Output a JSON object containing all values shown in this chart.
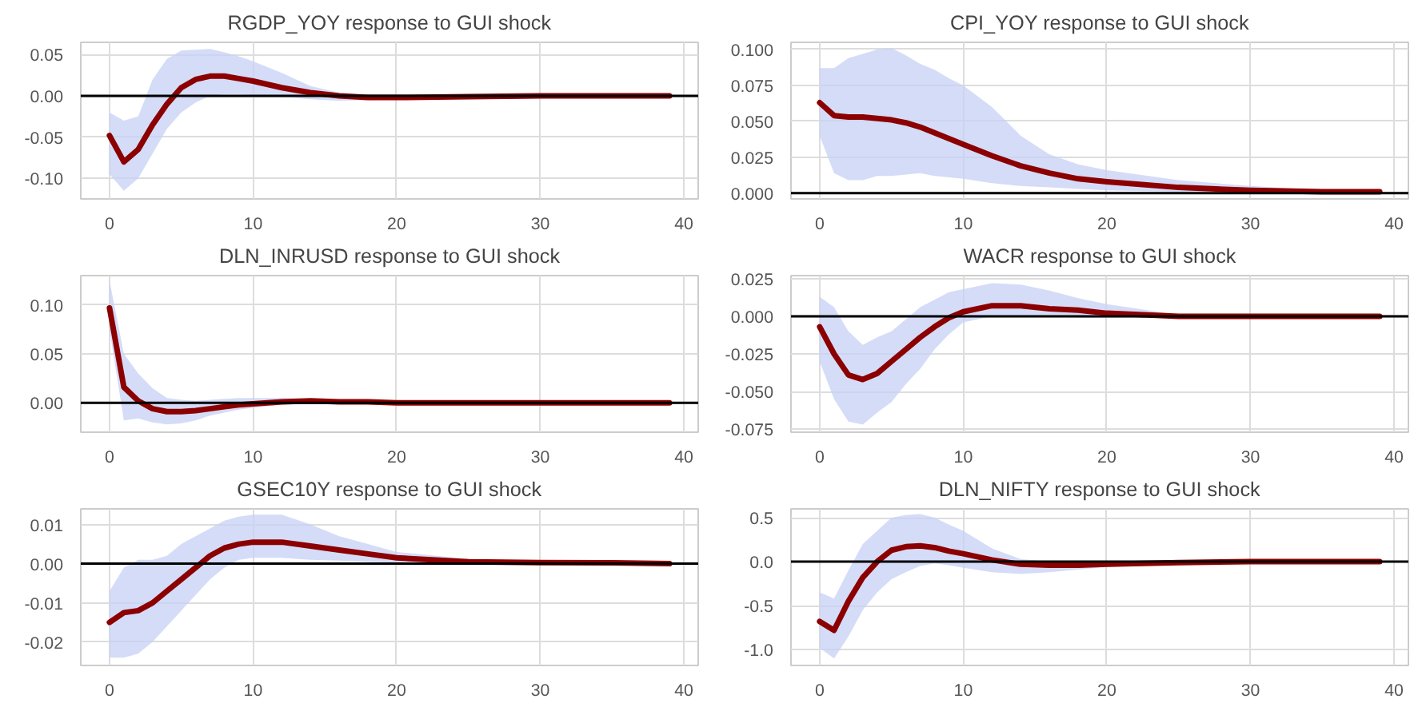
{
  "chart_data": [
    {
      "type": "line",
      "title": "RGDP_YOY response to GUI shock",
      "x": [
        0,
        1,
        2,
        3,
        4,
        5,
        6,
        7,
        8,
        9,
        10,
        12,
        14,
        16,
        18,
        20,
        25,
        30,
        35,
        39
      ],
      "xlim": [
        -2,
        41
      ],
      "xticks": [
        0,
        10,
        20,
        30,
        40
      ],
      "ylim": [
        -0.125,
        0.065
      ],
      "yticks": [
        {
          "value": -0.1,
          "label": "-0.10"
        },
        {
          "value": -0.05,
          "label": "-0.05"
        },
        {
          "value": 0,
          "label": "0.00"
        },
        {
          "value": 0.05,
          "label": "0.05"
        }
      ],
      "grid": true,
      "ref_lines": [
        {
          "axis": "y",
          "value": 0,
          "color": "#000000"
        }
      ],
      "series": [
        {
          "color": "#8b0000",
          "values": [
            -0.048,
            -0.08,
            -0.065,
            -0.035,
            -0.01,
            0.01,
            0.02,
            0.024,
            0.024,
            0.021,
            0.018,
            0.01,
            0.004,
            0.0,
            -0.002,
            -0.002,
            -0.001,
            0,
            0,
            0
          ],
          "upper": [
            -0.02,
            -0.03,
            -0.025,
            0.02,
            0.045,
            0.055,
            0.056,
            0.057,
            0.053,
            0.048,
            0.042,
            0.028,
            0.012,
            0.004,
            0.001,
            0,
            0.001,
            0.001,
            0.0005,
            0
          ],
          "lower": [
            -0.095,
            -0.115,
            -0.1,
            -0.07,
            -0.04,
            -0.02,
            -0.008,
            0,
            0.002,
            0.002,
            0.001,
            -0.001,
            -0.004,
            -0.006,
            -0.005,
            -0.004,
            -0.002,
            -0.001,
            -0.0005,
            0
          ]
        }
      ]
    },
    {
      "type": "line",
      "title": "CPI_YOY response to GUI shock",
      "x": [
        0,
        1,
        2,
        3,
        4,
        5,
        6,
        7,
        8,
        9,
        10,
        12,
        14,
        16,
        18,
        20,
        25,
        30,
        35,
        39
      ],
      "xlim": [
        -2,
        41
      ],
      "xticks": [
        0,
        10,
        20,
        30,
        40
      ],
      "ylim": [
        -0.004,
        0.105
      ],
      "yticks": [
        {
          "value": 0,
          "label": "0.000"
        },
        {
          "value": 0.025,
          "label": "0.025"
        },
        {
          "value": 0.05,
          "label": "0.050"
        },
        {
          "value": 0.075,
          "label": "0.075"
        },
        {
          "value": 0.1,
          "label": "0.100"
        }
      ],
      "grid": true,
      "ref_lines": [
        {
          "axis": "y",
          "value": 0,
          "color": "#000000"
        }
      ],
      "series": [
        {
          "color": "#8b0000",
          "values": [
            0.063,
            0.054,
            0.053,
            0.053,
            0.052,
            0.051,
            0.049,
            0.046,
            0.042,
            0.038,
            0.034,
            0.026,
            0.019,
            0.014,
            0.01,
            0.008,
            0.004,
            0.002,
            0.001,
            0.001
          ],
          "upper": [
            0.087,
            0.087,
            0.094,
            0.097,
            0.1,
            0.101,
            0.096,
            0.09,
            0.086,
            0.08,
            0.075,
            0.06,
            0.04,
            0.027,
            0.02,
            0.016,
            0.009,
            0.005,
            0.002,
            0.001
          ],
          "lower": [
            0.04,
            0.014,
            0.009,
            0.009,
            0.012,
            0.012,
            0.013,
            0.014,
            0.012,
            0.011,
            0.01,
            0.007,
            0.005,
            0.004,
            0.003,
            0.002,
            0.001,
            0.0005,
            0,
            0
          ]
        }
      ]
    },
    {
      "type": "line",
      "title": "DLN_INRUSD response to GUI shock",
      "x": [
        0,
        1,
        2,
        3,
        4,
        5,
        6,
        7,
        8,
        9,
        10,
        12,
        14,
        16,
        18,
        20,
        25,
        30,
        35,
        39
      ],
      "xlim": [
        -2,
        41
      ],
      "xticks": [
        0,
        10,
        20,
        30,
        40
      ],
      "ylim": [
        -0.03,
        0.13
      ],
      "yticks": [
        {
          "value": 0,
          "label": "0.00"
        },
        {
          "value": 0.05,
          "label": "0.05"
        },
        {
          "value": 0.1,
          "label": "0.10"
        }
      ],
      "grid": true,
      "ref_lines": [
        {
          "axis": "y",
          "value": 0,
          "color": "#000000"
        }
      ],
      "series": [
        {
          "color": "#8b0000",
          "values": [
            0.097,
            0.016,
            0.002,
            -0.006,
            -0.009,
            -0.009,
            -0.008,
            -0.006,
            -0.004,
            -0.002,
            -0.001,
            0.001,
            0.002,
            0.001,
            0.001,
            0,
            0,
            0,
            0,
            0
          ],
          "upper": [
            0.125,
            0.05,
            0.03,
            0.015,
            0.005,
            0.003,
            0.002,
            0.003,
            0.004,
            0.005,
            0.005,
            0.005,
            0.004,
            0.003,
            0.002,
            0.001,
            0.001,
            0,
            0,
            0
          ],
          "lower": [
            0.075,
            -0.018,
            -0.016,
            -0.02,
            -0.022,
            -0.021,
            -0.018,
            -0.013,
            -0.01,
            -0.007,
            -0.005,
            -0.002,
            -0.001,
            -0.001,
            -0.001,
            -0.001,
            0,
            0,
            0,
            0
          ]
        }
      ]
    },
    {
      "type": "line",
      "title": "WACR response to GUI shock",
      "x": [
        0,
        1,
        2,
        3,
        4,
        5,
        6,
        7,
        8,
        9,
        10,
        12,
        14,
        16,
        18,
        20,
        25,
        30,
        35,
        39
      ],
      "xlim": [
        -2,
        41
      ],
      "xticks": [
        0,
        10,
        20,
        30,
        40
      ],
      "ylim": [
        -0.077,
        0.027
      ],
      "yticks": [
        {
          "value": -0.075,
          "label": "-0.075"
        },
        {
          "value": -0.05,
          "label": "-0.050"
        },
        {
          "value": -0.025,
          "label": "-0.025"
        },
        {
          "value": 0,
          "label": "0.000"
        },
        {
          "value": 0.025,
          "label": "0.025"
        }
      ],
      "grid": true,
      "ref_lines": [
        {
          "axis": "y",
          "value": 0,
          "color": "#000000"
        }
      ],
      "series": [
        {
          "color": "#8b0000",
          "values": [
            -0.007,
            -0.025,
            -0.039,
            -0.042,
            -0.038,
            -0.03,
            -0.022,
            -0.014,
            -0.007,
            -0.001,
            0.003,
            0.007,
            0.007,
            0.005,
            0.004,
            0.002,
            0,
            0,
            0,
            0
          ],
          "upper": [
            0.013,
            0.006,
            -0.01,
            -0.019,
            -0.014,
            -0.01,
            -0.002,
            0.006,
            0.011,
            0.016,
            0.018,
            0.022,
            0.021,
            0.017,
            0.012,
            0.008,
            0.001,
            0,
            0,
            0
          ],
          "lower": [
            -0.03,
            -0.055,
            -0.07,
            -0.072,
            -0.064,
            -0.057,
            -0.045,
            -0.035,
            -0.022,
            -0.012,
            -0.004,
            0,
            0,
            0,
            -0.001,
            -0.001,
            -0.001,
            0,
            0,
            0
          ]
        }
      ]
    },
    {
      "type": "line",
      "title": "GSEC10Y response to GUI shock",
      "x": [
        0,
        1,
        2,
        3,
        4,
        5,
        6,
        7,
        8,
        9,
        10,
        12,
        14,
        16,
        18,
        20,
        25,
        30,
        35,
        39
      ],
      "xlim": [
        -2,
        41
      ],
      "xticks": [
        0,
        10,
        20,
        30,
        40
      ],
      "ylim": [
        -0.026,
        0.014
      ],
      "yticks": [
        {
          "value": -0.02,
          "label": "-0.02"
        },
        {
          "value": -0.01,
          "label": "-0.01"
        },
        {
          "value": 0,
          "label": "0.00"
        },
        {
          "value": 0.01,
          "label": "0.01"
        }
      ],
      "grid": true,
      "ref_lines": [
        {
          "axis": "y",
          "value": 0,
          "color": "#000000"
        }
      ],
      "series": [
        {
          "color": "#8b0000",
          "values": [
            -0.015,
            -0.0125,
            -0.012,
            -0.01,
            -0.007,
            -0.004,
            -0.001,
            0.002,
            0.004,
            0.005,
            0.0055,
            0.0055,
            0.0045,
            0.0035,
            0.0025,
            0.0015,
            0.0005,
            0.0003,
            0.0002,
            0
          ],
          "upper": [
            -0.007,
            -0.001,
            0.001,
            0.001,
            0.002,
            0.005,
            0.007,
            0.009,
            0.011,
            0.012,
            0.0125,
            0.0125,
            0.01,
            0.007,
            0.005,
            0.003,
            0.0012,
            0.0006,
            0.0003,
            0
          ],
          "lower": [
            -0.024,
            -0.024,
            -0.023,
            -0.02,
            -0.016,
            -0.012,
            -0.008,
            -0.004,
            -0.001,
            0.001,
            0.0015,
            0.0015,
            0.001,
            0.0008,
            0.0005,
            0.0003,
            0,
            0,
            0,
            0
          ]
        }
      ]
    },
    {
      "type": "line",
      "title": "DLN_NIFTY response to GUI shock",
      "x": [
        0,
        1,
        2,
        3,
        4,
        5,
        6,
        7,
        8,
        9,
        10,
        12,
        14,
        16,
        18,
        20,
        25,
        30,
        35,
        39
      ],
      "xlim": [
        -2,
        41
      ],
      "xticks": [
        0,
        10,
        20,
        30,
        40
      ],
      "ylim": [
        -1.18,
        0.6
      ],
      "yticks": [
        {
          "value": -1,
          "label": "-1.0"
        },
        {
          "value": -0.5,
          "label": "-0.5"
        },
        {
          "value": 0,
          "label": "0.0"
        },
        {
          "value": 0.5,
          "label": "0.5"
        }
      ],
      "grid": true,
      "ref_lines": [
        {
          "axis": "y",
          "value": 0,
          "color": "#000000"
        }
      ],
      "series": [
        {
          "color": "#8b0000",
          "values": [
            -0.68,
            -0.78,
            -0.45,
            -0.18,
            0.0,
            0.13,
            0.17,
            0.18,
            0.16,
            0.12,
            0.09,
            0.02,
            -0.03,
            -0.04,
            -0.04,
            -0.03,
            -0.01,
            0,
            0,
            0
          ],
          "upper": [
            -0.35,
            -0.42,
            -0.1,
            0.2,
            0.35,
            0.5,
            0.53,
            0.54,
            0.5,
            0.42,
            0.35,
            0.15,
            0.03,
            0,
            -0.005,
            0,
            0.01,
            0.01,
            0,
            0
          ],
          "lower": [
            -0.98,
            -1.1,
            -0.85,
            -0.55,
            -0.35,
            -0.2,
            -0.12,
            -0.05,
            -0.02,
            -0.04,
            -0.07,
            -0.12,
            -0.14,
            -0.12,
            -0.09,
            -0.06,
            -0.03,
            -0.01,
            0,
            0
          ]
        }
      ]
    }
  ]
}
